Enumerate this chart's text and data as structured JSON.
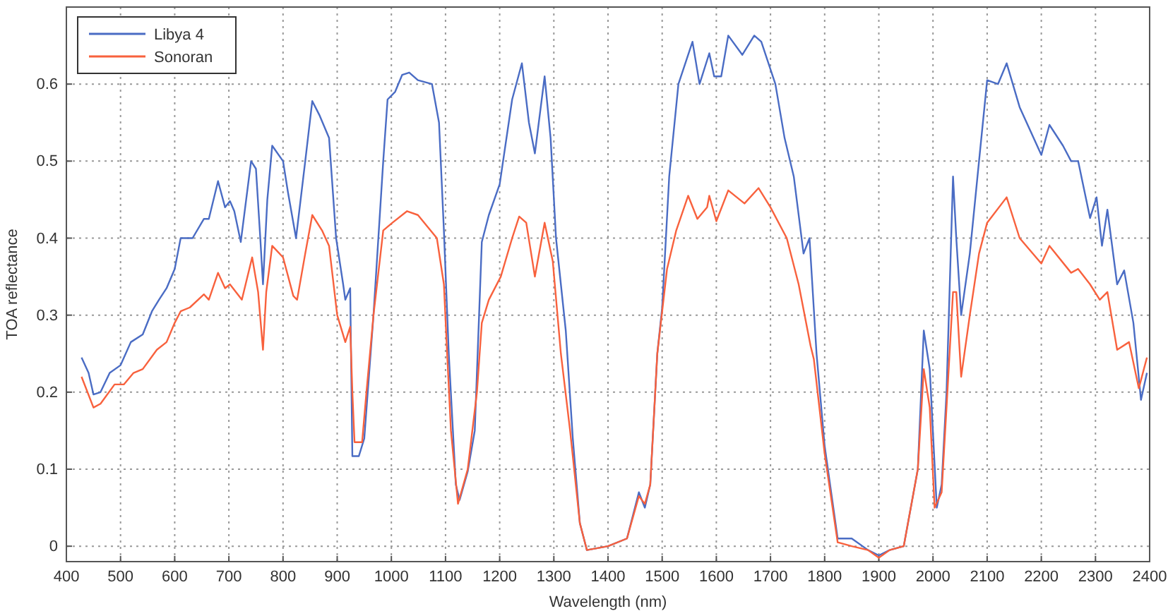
{
  "chart_data": {
    "type": "line",
    "xlabel": "Wavelength (nm)",
    "ylabel": "TOA reflectance",
    "xlim": [
      400,
      2400
    ],
    "ylim": [
      -0.02,
      0.7
    ],
    "xticks": [
      400,
      500,
      600,
      700,
      800,
      900,
      1000,
      1100,
      1200,
      1300,
      1400,
      1500,
      1600,
      1700,
      1800,
      1900,
      2000,
      2100,
      2200,
      2300,
      2400
    ],
    "yticks": [
      0,
      0.1,
      0.2,
      0.3,
      0.4,
      0.5,
      0.6
    ],
    "grid": true,
    "legend": "top left",
    "line_style": "solid",
    "marker": "none",
    "series": [
      {
        "name": "Libya 4",
        "color": "#4a6cc4",
        "x": [
          428,
          441,
          450,
          463,
          480,
          500,
          519,
          541,
          558,
          571,
          585,
          600,
          611,
          633,
          654,
          663,
          680,
          693,
          702,
          710,
          722,
          741,
          750,
          758,
          763,
          771,
          780,
          800,
          809,
          824,
          841,
          854,
          867,
          885,
          898,
          911,
          915,
          924,
          928,
          940,
          950,
          967,
          985,
          993,
          1007,
          1020,
          1033,
          1049,
          1075,
          1088,
          1097,
          1106,
          1119,
          1126,
          1141,
          1154,
          1167,
          1180,
          1200,
          1223,
          1241,
          1254,
          1265,
          1283,
          1294,
          1304,
          1322,
          1335,
          1348,
          1361,
          1400,
          1435,
          1457,
          1468,
          1478,
          1491,
          1500,
          1513,
          1530,
          1556,
          1569,
          1587,
          1596,
          1609,
          1622,
          1648,
          1670,
          1683,
          1709,
          1726,
          1743,
          1761,
          1772,
          1785,
          1800,
          1824,
          1850,
          1880,
          1900,
          1920,
          1946,
          1972,
          1983,
          1994,
          2007,
          2016,
          2025,
          2037,
          2043,
          2052,
          2068,
          2085,
          2100,
          2120,
          2136,
          2160,
          2200,
          2215,
          2240,
          2255,
          2268,
          2290,
          2302,
          2312,
          2322,
          2340,
          2353,
          2370,
          2384,
          2395
        ],
        "values": [
          0.245,
          0.225,
          0.197,
          0.2,
          0.225,
          0.235,
          0.265,
          0.275,
          0.305,
          0.32,
          0.335,
          0.36,
          0.4,
          0.4,
          0.425,
          0.425,
          0.474,
          0.44,
          0.448,
          0.435,
          0.395,
          0.5,
          0.49,
          0.4,
          0.34,
          0.45,
          0.52,
          0.5,
          0.46,
          0.4,
          0.5,
          0.578,
          0.56,
          0.53,
          0.4,
          0.34,
          0.32,
          0.335,
          0.117,
          0.117,
          0.14,
          0.3,
          0.5,
          0.58,
          0.59,
          0.612,
          0.615,
          0.605,
          0.6,
          0.55,
          0.41,
          0.25,
          0.08,
          0.06,
          0.097,
          0.15,
          0.395,
          0.43,
          0.47,
          0.58,
          0.627,
          0.55,
          0.51,
          0.61,
          0.53,
          0.4,
          0.28,
          0.14,
          0.03,
          -0.005,
          0,
          0.01,
          0.07,
          0.05,
          0.08,
          0.25,
          0.31,
          0.48,
          0.6,
          0.655,
          0.6,
          0.64,
          0.61,
          0.61,
          0.663,
          0.638,
          0.663,
          0.655,
          0.6,
          0.53,
          0.48,
          0.38,
          0.4,
          0.25,
          0.13,
          0.01,
          0.01,
          -0.005,
          -0.012,
          -0.005,
          0.0,
          0.1,
          0.28,
          0.23,
          0.05,
          0.08,
          0.2,
          0.48,
          0.4,
          0.3,
          0.38,
          0.5,
          0.605,
          0.6,
          0.627,
          0.57,
          0.508,
          0.547,
          0.52,
          0.5,
          0.5,
          0.426,
          0.453,
          0.39,
          0.437,
          0.34,
          0.358,
          0.29,
          0.19,
          0.225
        ]
      },
      {
        "name": "Sonoran",
        "color": "#f8613d",
        "x": [
          428,
          450,
          463,
          489,
          506,
          524,
          541,
          567,
          585,
          600,
          611,
          628,
          654,
          663,
          680,
          693,
          702,
          724,
          743,
          754,
          763,
          769,
          780,
          800,
          819,
          826,
          841,
          854,
          872,
          885,
          900,
          915,
          924,
          928,
          932,
          946,
          954,
          967,
          985,
          1002,
          1029,
          1049,
          1084,
          1097,
          1103,
          1110,
          1123,
          1141,
          1158,
          1167,
          1180,
          1202,
          1223,
          1236,
          1249,
          1265,
          1283,
          1298,
          1313,
          1330,
          1348,
          1361,
          1400,
          1435,
          1457,
          1468,
          1478,
          1491,
          1509,
          1526,
          1548,
          1565,
          1583,
          1587,
          1600,
          1622,
          1652,
          1678,
          1700,
          1730,
          1752,
          1774,
          1780,
          1800,
          1824,
          1850,
          1880,
          1900,
          1920,
          1946,
          1972,
          1983,
          1994,
          2003,
          2016,
          2025,
          2037,
          2043,
          2052,
          2068,
          2085,
          2100,
          2136,
          2160,
          2200,
          2215,
          2255,
          2268,
          2290,
          2308,
          2322,
          2340,
          2362,
          2380,
          2395
        ],
        "values": [
          0.22,
          0.18,
          0.185,
          0.21,
          0.21,
          0.225,
          0.23,
          0.255,
          0.265,
          0.29,
          0.305,
          0.31,
          0.327,
          0.32,
          0.355,
          0.335,
          0.34,
          0.32,
          0.375,
          0.33,
          0.255,
          0.33,
          0.39,
          0.375,
          0.325,
          0.32,
          0.38,
          0.43,
          0.41,
          0.39,
          0.3,
          0.265,
          0.285,
          0.2,
          0.135,
          0.135,
          0.2,
          0.3,
          0.41,
          0.42,
          0.435,
          0.43,
          0.4,
          0.34,
          0.25,
          0.15,
          0.055,
          0.1,
          0.2,
          0.29,
          0.32,
          0.35,
          0.4,
          0.428,
          0.42,
          0.35,
          0.42,
          0.37,
          0.25,
          0.15,
          0.03,
          -0.005,
          0,
          0.01,
          0.065,
          0.055,
          0.08,
          0.25,
          0.36,
          0.41,
          0.455,
          0.425,
          0.44,
          0.455,
          0.422,
          0.462,
          0.445,
          0.465,
          0.44,
          0.4,
          0.34,
          0.26,
          0.243,
          0.12,
          0.005,
          0.0,
          -0.005,
          -0.015,
          -0.005,
          0.0,
          0.1,
          0.23,
          0.18,
          0.05,
          0.07,
          0.18,
          0.33,
          0.33,
          0.22,
          0.3,
          0.38,
          0.42,
          0.453,
          0.4,
          0.367,
          0.39,
          0.355,
          0.36,
          0.34,
          0.32,
          0.33,
          0.255,
          0.265,
          0.205,
          0.245
        ]
      }
    ]
  }
}
